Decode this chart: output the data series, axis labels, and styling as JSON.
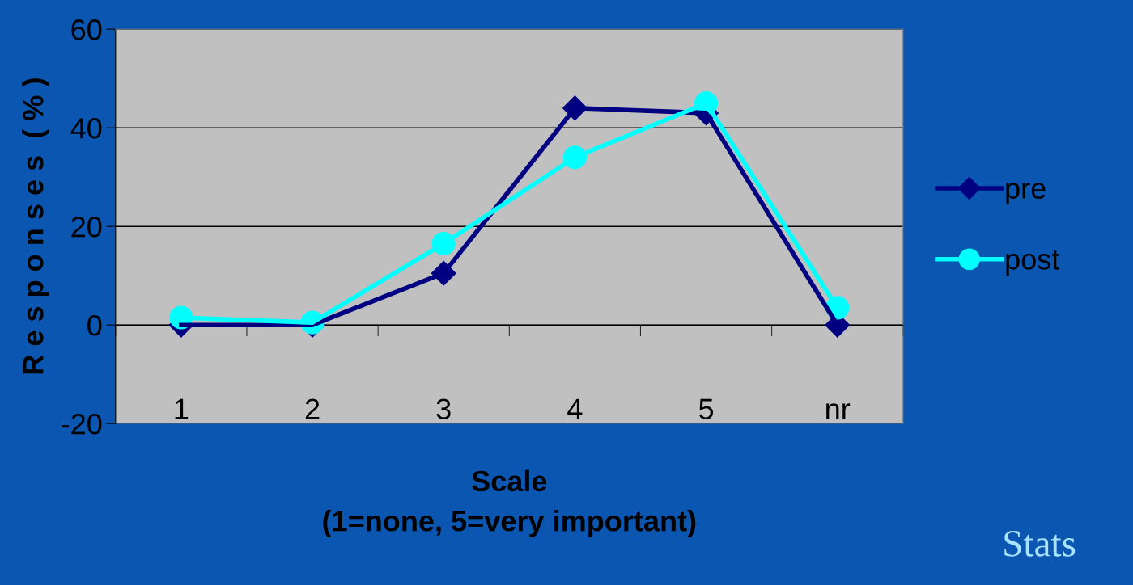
{
  "chart_data": {
    "type": "line",
    "xlabel": "Scale\n(1=none, 5=very important)",
    "ylabel": "R e s p o n s e s  ( % )",
    "categories": [
      "1",
      "2",
      "3",
      "4",
      "5",
      "nr"
    ],
    "series": [
      {
        "name": "pre",
        "color": "#000080",
        "marker": "diamond",
        "values": [
          0,
          0,
          10.5,
          44,
          43,
          0
        ]
      },
      {
        "name": "post",
        "color": "#00ffff",
        "marker": "circle",
        "values": [
          1.5,
          0.5,
          16.5,
          34,
          45,
          3.5
        ]
      }
    ],
    "ylim": [
      -20,
      60
    ],
    "yticks": [
      -20,
      0,
      20,
      40,
      60
    ],
    "grid": "y",
    "legend": "right",
    "line_style": "solid",
    "annotations": [
      "Stats"
    ]
  }
}
